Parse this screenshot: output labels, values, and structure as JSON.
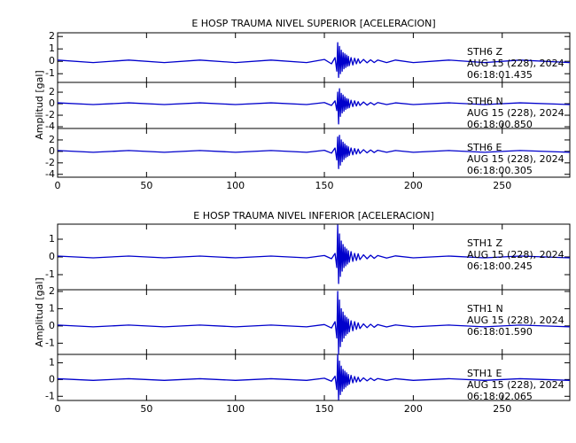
{
  "chart_data": [
    {
      "type": "line",
      "title": "E HOSP TRAUMA NIVEL SUPERIOR [ACELERACION]",
      "ylabel": "Amplitud [gal]",
      "color": "#0000cc",
      "xlim": [
        0,
        288
      ],
      "xticks": [
        0,
        50,
        100,
        150,
        200,
        250
      ],
      "x": [
        0,
        20,
        40,
        60,
        80,
        100,
        120,
        140,
        150,
        154,
        156,
        157,
        157.5,
        158,
        158.5,
        159,
        159.5,
        160,
        160.5,
        161,
        161.5,
        162,
        162.5,
        163,
        163.5,
        164,
        165,
        166,
        167,
        168,
        169,
        170,
        172,
        174,
        176,
        178,
        180,
        185,
        190,
        200,
        220,
        240,
        260,
        288
      ],
      "panels": [
        {
          "ylim": [
            -1.7,
            2.3
          ],
          "yticks": [
            -1,
            0,
            1,
            2
          ],
          "annotation": [
            "STH6   Z",
            "AUG 15 (228), 2024",
            "06:18:01.435"
          ],
          "values": [
            0.1,
            -0.1,
            0.1,
            -0.1,
            0.1,
            -0.1,
            0.1,
            -0.1,
            0.15,
            -0.2,
            0.3,
            -0.8,
            1.5,
            -1.3,
            1.2,
            -1.0,
            0.9,
            -0.8,
            0.7,
            -0.6,
            0.6,
            -0.5,
            0.5,
            -0.4,
            0.4,
            -0.35,
            0.3,
            -0.3,
            0.25,
            -0.2,
            0.2,
            -0.15,
            0.15,
            -0.12,
            0.12,
            -0.1,
            0.1,
            -0.1,
            0.1,
            -0.1,
            0.1,
            -0.1,
            0.1,
            -0.1
          ]
        },
        {
          "ylim": [
            -4.3,
            3.7
          ],
          "yticks": [
            -4,
            -2,
            0,
            2
          ],
          "annotation": [
            "STH6   N",
            "AUG 15 (228), 2024",
            "06:18:00.850"
          ],
          "values": [
            0.15,
            -0.15,
            0.15,
            -0.15,
            0.15,
            -0.15,
            0.15,
            -0.15,
            0.2,
            -0.3,
            0.5,
            -1.2,
            2.0,
            -3.5,
            2.6,
            -2.2,
            1.8,
            -1.6,
            1.5,
            -1.3,
            1.2,
            -1.0,
            0.9,
            -0.8,
            0.8,
            -0.7,
            0.6,
            -0.5,
            0.5,
            -0.4,
            0.35,
            -0.3,
            0.3,
            -0.25,
            0.2,
            -0.2,
            0.2,
            -0.15,
            0.15,
            -0.15,
            0.15,
            -0.15,
            0.15,
            -0.15
          ]
        },
        {
          "ylim": [
            -4.5,
            4
          ],
          "yticks": [
            -4,
            -2,
            0,
            2
          ],
          "annotation": [
            "STH6   E",
            "AUG 15 (228), 2024",
            "06:18:00.305"
          ],
          "values": [
            0.15,
            -0.15,
            0.15,
            -0.15,
            0.15,
            -0.15,
            0.15,
            -0.15,
            0.2,
            -0.3,
            0.6,
            -1.5,
            2.5,
            -3.0,
            2.8,
            -2.4,
            2.0,
            -1.8,
            1.6,
            -1.4,
            1.3,
            -1.1,
            1.0,
            -0.9,
            0.8,
            -0.7,
            0.6,
            -0.6,
            0.5,
            -0.45,
            0.4,
            -0.35,
            0.3,
            -0.25,
            0.25,
            -0.2,
            0.2,
            -0.15,
            0.15,
            -0.15,
            0.15,
            -0.15,
            0.15,
            -0.15
          ]
        }
      ]
    },
    {
      "type": "line",
      "title": "E HOSP TRAUMA NIVEL INFERIOR [ACELERACION]",
      "ylabel": "Amplitud [gal]",
      "color": "#0000cc",
      "xlim": [
        0,
        288
      ],
      "xticks": [
        0,
        50,
        100,
        150,
        200,
        250
      ],
      "x": [
        0,
        20,
        40,
        60,
        80,
        100,
        120,
        140,
        150,
        154,
        156,
        157,
        157.5,
        158,
        158.5,
        159,
        159.5,
        160,
        160.5,
        161,
        161.5,
        162,
        162.5,
        163,
        163.5,
        164,
        165,
        166,
        167,
        168,
        169,
        170,
        172,
        174,
        176,
        178,
        180,
        185,
        190,
        200,
        220,
        240,
        260,
        288
      ],
      "panels": [
        {
          "ylim": [
            -1.85,
            1.85
          ],
          "yticks": [
            -1,
            0,
            1
          ],
          "annotation": [
            "STH1   Z",
            "AUG 15 (228), 2024",
            "06:18:00.245"
          ],
          "values": [
            0.05,
            -0.05,
            0.05,
            -0.05,
            0.05,
            -0.05,
            0.05,
            -0.05,
            0.08,
            -0.1,
            0.2,
            -0.6,
            1.8,
            -1.5,
            1.3,
            -1.1,
            0.9,
            -0.8,
            0.7,
            -0.6,
            0.55,
            -0.5,
            0.45,
            -0.4,
            0.35,
            -0.3,
            0.3,
            -0.25,
            0.2,
            -0.2,
            0.18,
            -0.15,
            0.12,
            -0.1,
            0.1,
            -0.08,
            0.08,
            -0.06,
            0.06,
            -0.05,
            0.05,
            -0.05,
            0.05,
            -0.05
          ]
        },
        {
          "ylim": [
            -1.65,
            2.1
          ],
          "yticks": [
            -1,
            0,
            1,
            2
          ],
          "annotation": [
            "STH1   N",
            "AUG 15 (228), 2024",
            "06:18:01.590"
          ],
          "values": [
            0.05,
            -0.05,
            0.05,
            -0.05,
            0.05,
            -0.05,
            0.05,
            -0.05,
            0.08,
            -0.12,
            0.25,
            -0.7,
            2.0,
            -1.6,
            1.5,
            -1.2,
            1.0,
            -0.9,
            0.8,
            -0.7,
            0.6,
            -0.55,
            0.5,
            -0.45,
            0.4,
            -0.35,
            0.3,
            -0.28,
            0.25,
            -0.2,
            0.18,
            -0.15,
            0.12,
            -0.1,
            0.1,
            -0.08,
            0.08,
            -0.06,
            0.06,
            -0.05,
            0.05,
            -0.05,
            0.05,
            -0.05
          ]
        },
        {
          "ylim": [
            -1.25,
            1.5
          ],
          "yticks": [
            -1,
            0,
            1
          ],
          "annotation": [
            "STH1   E",
            "AUG 15 (228), 2024",
            "06:18:02.065"
          ],
          "values": [
            0.05,
            -0.05,
            0.05,
            -0.05,
            0.05,
            -0.05,
            0.05,
            -0.05,
            0.08,
            -0.1,
            0.2,
            -0.6,
            1.5,
            -1.2,
            1.1,
            -0.9,
            0.8,
            -0.7,
            0.6,
            -0.55,
            0.5,
            -0.45,
            0.4,
            -0.35,
            0.3,
            -0.28,
            0.25,
            -0.2,
            0.18,
            -0.15,
            0.14,
            -0.12,
            0.1,
            -0.08,
            0.08,
            -0.06,
            0.06,
            -0.05,
            0.05,
            -0.05,
            0.05,
            -0.05,
            0.05,
            -0.05
          ]
        }
      ]
    }
  ]
}
